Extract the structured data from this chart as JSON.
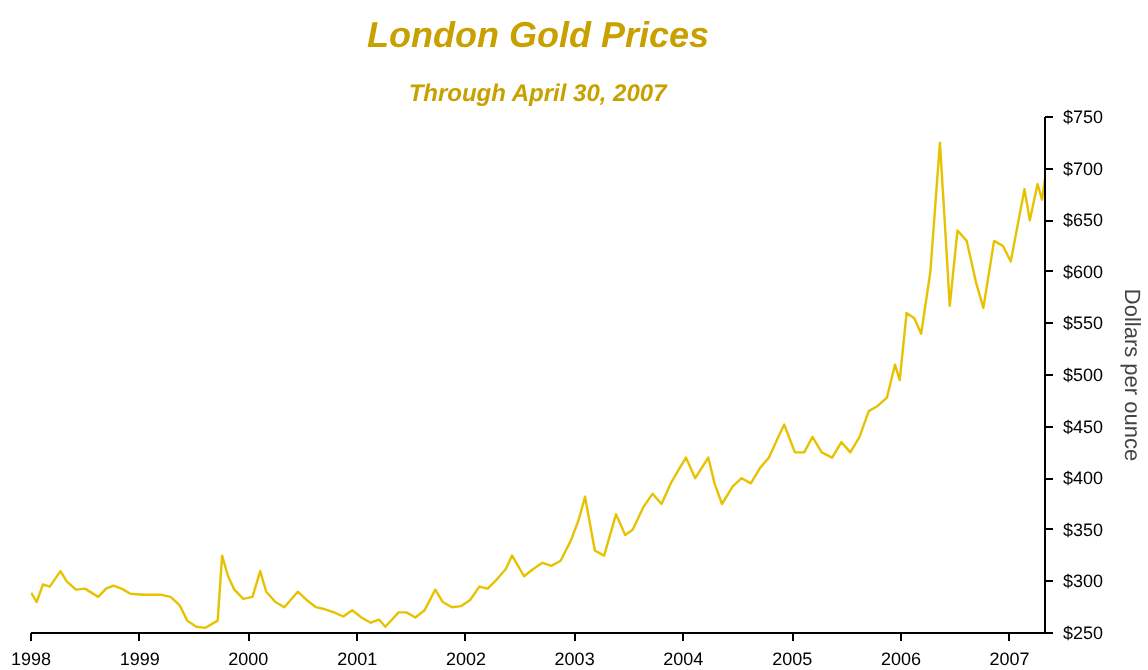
{
  "chart_data": {
    "type": "line",
    "title": "London Gold Prices",
    "subtitle": "Through April 30, 2007",
    "ylabel": "Dollars per ounce",
    "x": [
      "1998-01-02",
      "1998-01-20",
      "1998-02-10",
      "1998-03-05",
      "1998-04-10",
      "1998-05-01",
      "1998-06-01",
      "1998-07-01",
      "1998-08-15",
      "1998-09-10",
      "1998-10-05",
      "1998-11-01",
      "1998-12-01",
      "1999-01-15",
      "1999-02-15",
      "1999-03-15",
      "1999-04-15",
      "1999-05-15",
      "1999-06-10",
      "1999-07-10",
      "1999-08-10",
      "1999-09-20",
      "1999-10-05",
      "1999-10-25",
      "1999-11-15",
      "1999-12-15",
      "2000-01-15",
      "2000-02-10",
      "2000-03-01",
      "2000-04-01",
      "2000-05-01",
      "2000-06-15",
      "2000-07-15",
      "2000-08-15",
      "2000-09-15",
      "2000-10-15",
      "2000-11-15",
      "2000-12-15",
      "2001-01-15",
      "2001-02-15",
      "2001-03-15",
      "2001-04-05",
      "2001-05-20",
      "2001-06-15",
      "2001-07-15",
      "2001-08-15",
      "2001-09-20",
      "2001-10-15",
      "2001-11-15",
      "2001-12-15",
      "2002-01-15",
      "2002-02-15",
      "2002-03-15",
      "2002-04-15",
      "2002-05-15",
      "2002-06-05",
      "2002-07-15",
      "2002-08-15",
      "2002-09-15",
      "2002-10-15",
      "2002-11-15",
      "2002-12-20",
      "2003-01-15",
      "2003-02-05",
      "2003-03-10",
      "2003-04-10",
      "2003-05-20",
      "2003-06-20",
      "2003-07-15",
      "2003-08-20",
      "2003-09-20",
      "2003-10-20",
      "2003-11-20",
      "2003-12-20",
      "2004-01-10",
      "2004-02-10",
      "2004-03-25",
      "2004-04-15",
      "2004-05-10",
      "2004-06-15",
      "2004-07-15",
      "2004-08-15",
      "2004-09-15",
      "2004-10-15",
      "2004-11-15",
      "2004-12-05",
      "2005-01-10",
      "2005-02-10",
      "2005-03-10",
      "2005-04-10",
      "2005-05-15",
      "2005-06-15",
      "2005-07-15",
      "2005-08-15",
      "2005-09-15",
      "2005-10-15",
      "2005-11-15",
      "2005-12-12",
      "2005-12-28",
      "2006-01-20",
      "2006-02-15",
      "2006-03-10",
      "2006-04-10",
      "2006-05-12",
      "2006-05-28",
      "2006-06-14",
      "2006-07-10",
      "2006-08-10",
      "2006-09-10",
      "2006-10-05",
      "2006-11-10",
      "2006-12-10",
      "2007-01-05",
      "2007-02-20",
      "2007-03-10",
      "2007-04-05",
      "2007-04-20",
      "2007-04-30"
    ],
    "series": [
      {
        "color": "#e6c200",
        "values": [
          289,
          280,
          297,
          295,
          310,
          300,
          292,
          293,
          285,
          293,
          296,
          293,
          288,
          287,
          287,
          287,
          285,
          277,
          262,
          256,
          255,
          262,
          325,
          305,
          292,
          283,
          285,
          310,
          290,
          280,
          275,
          290,
          282,
          275,
          273,
          270,
          266,
          272,
          265,
          260,
          263,
          256,
          270,
          270,
          265,
          272,
          292,
          280,
          275,
          276,
          282,
          295,
          293,
          302,
          312,
          325,
          305,
          312,
          318,
          315,
          320,
          340,
          360,
          382,
          330,
          325,
          365,
          345,
          350,
          372,
          385,
          375,
          395,
          410,
          420,
          400,
          420,
          395,
          375,
          392,
          400,
          395,
          410,
          420,
          440,
          452,
          425,
          425,
          440,
          425,
          420,
          435,
          425,
          440,
          465,
          470,
          478,
          510,
          495,
          560,
          555,
          540,
          600,
          725,
          650,
          567,
          640,
          630,
          590,
          565,
          630,
          625,
          610,
          680,
          650,
          685,
          670,
          690
        ]
      }
    ],
    "xlim": [
      "1998-01-01",
      "2007-04-30"
    ],
    "xticks": [
      "1998",
      "1999",
      "2000",
      "2001",
      "2002",
      "2003",
      "2004",
      "2005",
      "2006",
      "2007"
    ],
    "ylim": [
      250,
      750
    ],
    "yticks": [
      {
        "value": 250,
        "label": "$250"
      },
      {
        "value": 300,
        "label": "$300"
      },
      {
        "value": 350,
        "label": "$350"
      },
      {
        "value": 400,
        "label": "$400"
      },
      {
        "value": 450,
        "label": "$450"
      },
      {
        "value": 500,
        "label": "$500"
      },
      {
        "value": 550,
        "label": "$550"
      },
      {
        "value": 600,
        "label": "$600"
      },
      {
        "value": 650,
        "label": "$650"
      },
      {
        "value": 700,
        "label": "$700"
      },
      {
        "value": 750,
        "label": "$750"
      }
    ],
    "grid": false,
    "marker": "none",
    "line_style": "solid"
  }
}
